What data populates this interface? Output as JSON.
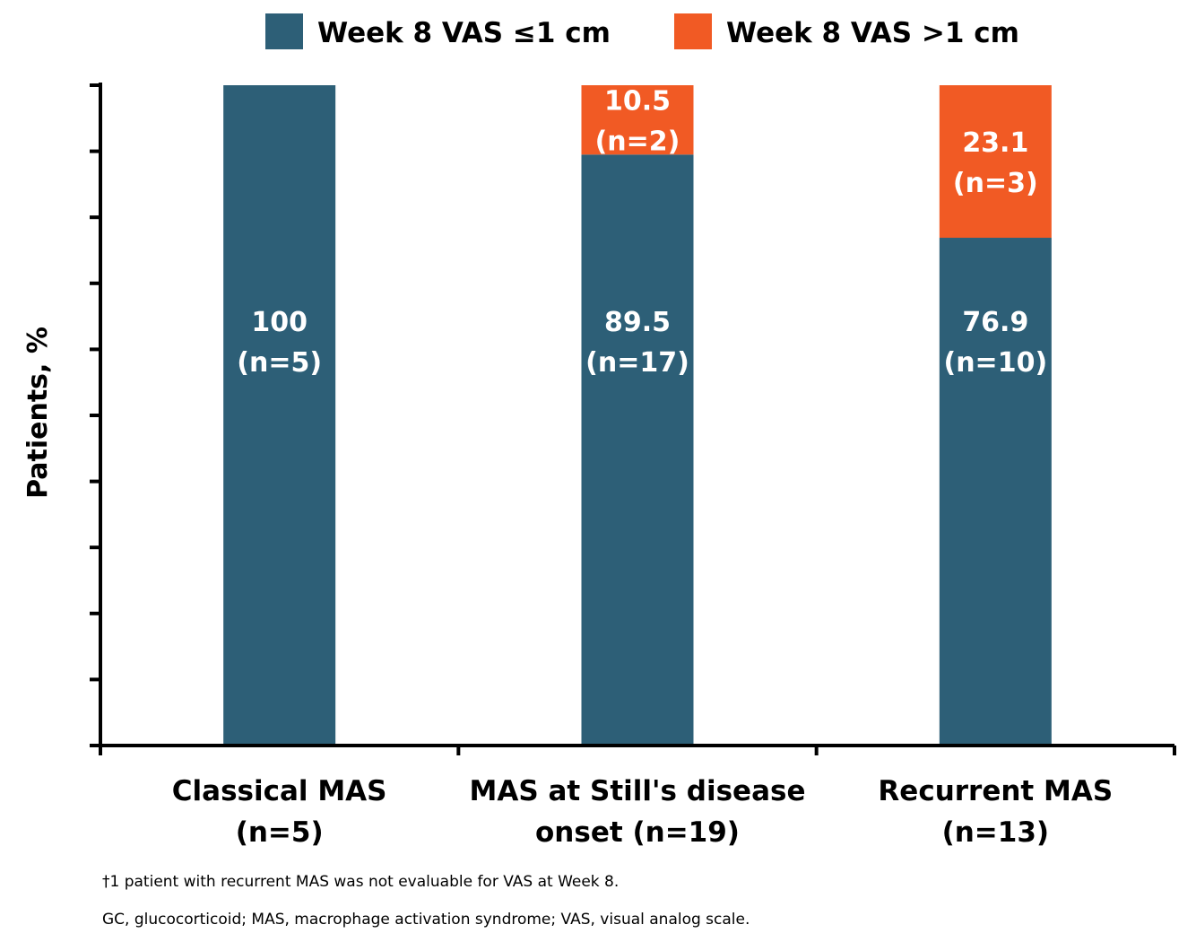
{
  "chart_data": {
    "type": "bar",
    "stacked": true,
    "categories": [
      [
        "Classical MAS",
        "(n=5)"
      ],
      [
        "MAS at Still's disease",
        "onset (n=19)"
      ],
      [
        "Recurrent MAS",
        "(n=13)"
      ]
    ],
    "series": [
      {
        "name": "Week 8 VAS ≤1 cm",
        "color": "#2d5f77",
        "values": [
          100,
          89.5,
          76.9
        ],
        "labels": [
          [
            "100",
            "(n=5)"
          ],
          [
            "89.5",
            "(n=17)"
          ],
          [
            "76.9",
            "(n=10)"
          ]
        ]
      },
      {
        "name": "Week 8 VAS >1 cm",
        "color": "#f15a24",
        "values": [
          0,
          10.5,
          23.1
        ],
        "labels": [
          null,
          [
            "10.5",
            "(n=2)"
          ],
          [
            "23.1",
            "(n=3)"
          ]
        ]
      }
    ],
    "ylabel": "Patients, %",
    "ylim": [
      0,
      100
    ],
    "ytick_step": 10,
    "ytick_labels_shown": false,
    "grid": false,
    "legend_placement": "top"
  },
  "footnotes": [
    "†1 patient with recurrent MAS was not evaluable for VAS at Week 8.",
    "GC, glucocorticoid; MAS, macrophage activation syndrome; VAS, visual analog scale."
  ]
}
